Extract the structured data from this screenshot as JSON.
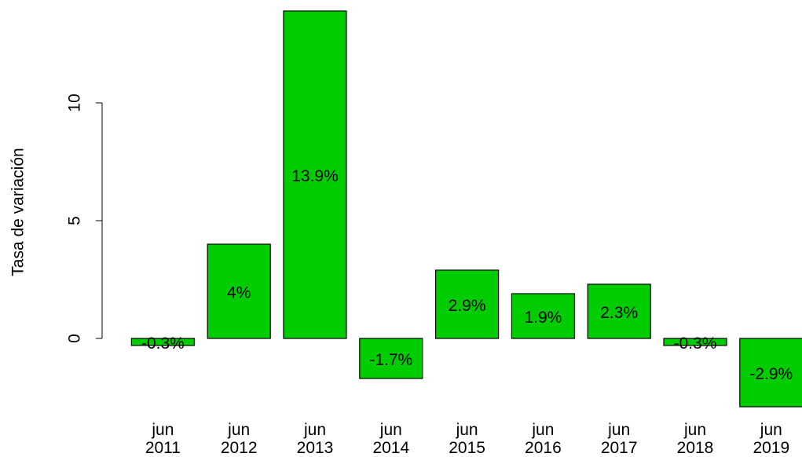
{
  "chart_data": {
    "type": "bar",
    "y_label": "Tasa de variación",
    "categories": [
      "jun\n2011",
      "jun\n2012",
      "jun\n2013",
      "jun\n2014",
      "jun\n2015",
      "jun\n2016",
      "jun\n2017",
      "jun\n2018",
      "jun\n2019"
    ],
    "values": [
      -0.3,
      4,
      13.9,
      -1.7,
      2.9,
      1.9,
      2.3,
      -0.3,
      -2.9
    ],
    "value_labels": [
      "-0.3%",
      "4%",
      "13.9%",
      "-1.7%",
      "2.9%",
      "1.9%",
      "2.3%",
      "-0.3%",
      "-2.9%"
    ],
    "color": "#00cd00",
    "ylim": [
      -2.9,
      13.9
    ],
    "yticks": [
      0,
      5,
      10
    ]
  }
}
